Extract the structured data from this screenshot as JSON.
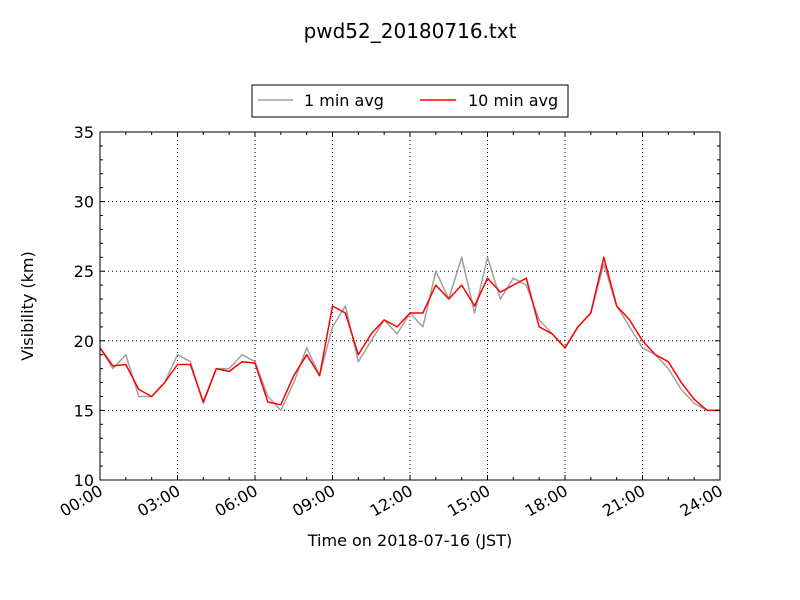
{
  "chart_data": {
    "type": "line",
    "title": "pwd52_20180716.txt",
    "xlabel": "Time on 2018-07-16 (JST)",
    "ylabel": "Visibility (km)",
    "xlim": [
      "00:00",
      "24:00"
    ],
    "ylim": [
      10,
      35
    ],
    "xticks": [
      "00:00",
      "03:00",
      "06:00",
      "09:00",
      "12:00",
      "15:00",
      "18:00",
      "21:00",
      "24:00"
    ],
    "yticks": [
      "10",
      "15",
      "20",
      "25",
      "30",
      "35"
    ],
    "grid": true,
    "legend_position": "top-center",
    "x": [
      "00:00",
      "00:30",
      "01:00",
      "01:30",
      "02:00",
      "02:30",
      "03:00",
      "03:30",
      "04:00",
      "04:30",
      "05:00",
      "05:30",
      "06:00",
      "06:30",
      "07:00",
      "07:30",
      "08:00",
      "08:30",
      "09:00",
      "09:30",
      "10:00",
      "10:30",
      "11:00",
      "11:30",
      "12:00",
      "12:30",
      "13:00",
      "13:30",
      "14:00",
      "14:30",
      "15:00",
      "15:30",
      "16:00",
      "16:30",
      "17:00",
      "17:30",
      "18:00",
      "18:30",
      "19:00",
      "19:30",
      "20:00",
      "20:30",
      "21:00",
      "21:30",
      "22:00",
      "22:30",
      "23:00",
      "23:30",
      "24:00"
    ],
    "series": [
      {
        "name": "1 min avg",
        "color": "#a0a0a0",
        "values": [
          19.5,
          18.0,
          19.0,
          16.0,
          16.0,
          17.0,
          19.0,
          18.5,
          15.5,
          18.0,
          18.0,
          19.0,
          18.5,
          16.0,
          15.0,
          17.0,
          19.5,
          17.5,
          21.0,
          22.5,
          18.5,
          20.0,
          21.5,
          20.5,
          22.0,
          21.0,
          25.0,
          23.0,
          26.0,
          22.0,
          26.0,
          23.0,
          24.5,
          24.0,
          21.5,
          20.5,
          19.5,
          21.0,
          22.0,
          25.5,
          22.5,
          21.0,
          19.5,
          19.0,
          18.0,
          16.5,
          15.5,
          15.0,
          15.0
        ]
      },
      {
        "name": "10 min avg",
        "color": "#ff0000",
        "values": [
          19.5,
          18.2,
          18.3,
          16.5,
          16.0,
          17.0,
          18.3,
          18.3,
          15.6,
          18.0,
          17.8,
          18.5,
          18.4,
          15.6,
          15.4,
          17.5,
          19.0,
          17.5,
          22.5,
          22.0,
          19.0,
          20.5,
          21.5,
          21.0,
          22.0,
          22.0,
          24.0,
          23.0,
          24.0,
          22.5,
          24.5,
          23.5,
          24.0,
          24.5,
          21.0,
          20.5,
          19.5,
          21.0,
          22.0,
          26.0,
          22.5,
          21.5,
          20.0,
          19.0,
          18.5,
          17.0,
          15.8,
          15.0,
          15.0
        ]
      }
    ]
  }
}
